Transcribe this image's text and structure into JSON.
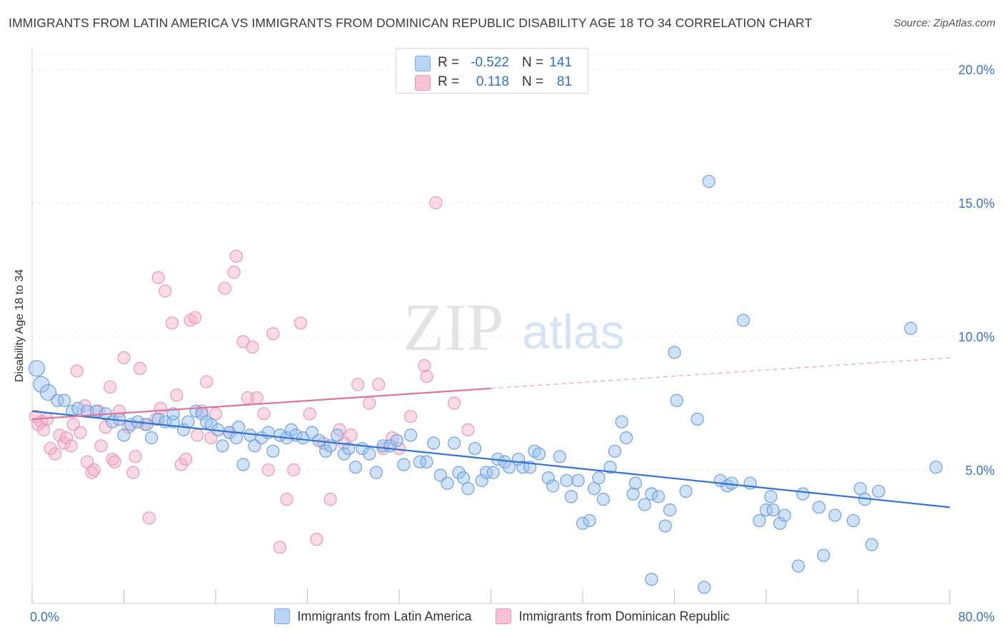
{
  "title": "IMMIGRANTS FROM LATIN AMERICA VS IMMIGRANTS FROM DOMINICAN REPUBLIC DISABILITY AGE 18 TO 34 CORRELATION CHART",
  "source": "Source: ZipAtlas.com",
  "watermark": {
    "zip": "ZIP",
    "atlas": "atlas"
  },
  "stats": [
    {
      "r_label": "R =",
      "r": "-0.522",
      "n_label": "N =",
      "n": "141",
      "color": "#7aa8e6"
    },
    {
      "r_label": "R =",
      "r": "0.118",
      "n_label": "N =",
      "n": "81",
      "color": "#ea94b0"
    }
  ],
  "chart_data": {
    "type": "scatter",
    "ylabel": "Disability Age 18 to 34",
    "x_tick_labels": [
      "0.0%",
      "80.0%"
    ],
    "y_tick_labels": [
      "5.0%",
      "10.0%",
      "15.0%",
      "20.0%"
    ],
    "y_ticks": [
      5,
      10,
      15,
      20
    ],
    "xlim": [
      0,
      80
    ],
    "ylim": [
      0,
      21
    ],
    "grid": true,
    "legend": "bottom",
    "series": [
      {
        "name": "Immigrants from Latin America",
        "color": "#5b93e0",
        "trend": {
          "x": [
            0,
            80
          ],
          "y": [
            7.2,
            3.6
          ],
          "dashed_from": null
        },
        "points": [
          [
            0.4,
            8.8
          ],
          [
            0.8,
            8.2
          ],
          [
            1.4,
            7.9
          ],
          [
            2.2,
            7.6
          ],
          [
            2.8,
            7.6
          ],
          [
            3.5,
            7.2
          ],
          [
            4.0,
            7.3
          ],
          [
            4.8,
            7.2
          ],
          [
            5.6,
            7.2
          ],
          [
            6.4,
            7.1
          ],
          [
            7.0,
            6.8
          ],
          [
            7.6,
            6.9
          ],
          [
            8.0,
            6.3
          ],
          [
            8.6,
            6.7
          ],
          [
            9.2,
            6.8
          ],
          [
            10.0,
            6.7
          ],
          [
            10.4,
            6.2
          ],
          [
            11.0,
            6.9
          ],
          [
            11.6,
            6.8
          ],
          [
            12.3,
            6.8
          ],
          [
            12.3,
            7.1
          ],
          [
            13.2,
            6.5
          ],
          [
            13.6,
            6.8
          ],
          [
            14.3,
            7.2
          ],
          [
            14.8,
            7.1
          ],
          [
            15.2,
            6.8
          ],
          [
            15.6,
            6.7
          ],
          [
            16.2,
            6.5
          ],
          [
            16.6,
            5.9
          ],
          [
            17.2,
            6.4
          ],
          [
            17.8,
            6.2
          ],
          [
            18.0,
            6.6
          ],
          [
            18.4,
            5.2
          ],
          [
            19.0,
            6.3
          ],
          [
            19.4,
            5.9
          ],
          [
            20.0,
            6.2
          ],
          [
            20.6,
            6.4
          ],
          [
            21.0,
            5.7
          ],
          [
            21.6,
            6.3
          ],
          [
            22.2,
            6.2
          ],
          [
            22.6,
            6.5
          ],
          [
            23.0,
            6.3
          ],
          [
            23.6,
            6.2
          ],
          [
            24.4,
            6.4
          ],
          [
            25.0,
            6.1
          ],
          [
            25.6,
            5.7
          ],
          [
            26.0,
            5.9
          ],
          [
            26.6,
            6.3
          ],
          [
            27.2,
            5.6
          ],
          [
            27.6,
            5.8
          ],
          [
            28.2,
            5.1
          ],
          [
            28.8,
            5.8
          ],
          [
            29.4,
            5.6
          ],
          [
            30.0,
            4.9
          ],
          [
            30.6,
            5.9
          ],
          [
            31.2,
            5.9
          ],
          [
            31.8,
            6.1
          ],
          [
            32.4,
            5.2
          ],
          [
            33.0,
            6.3
          ],
          [
            33.8,
            5.3
          ],
          [
            34.4,
            5.3
          ],
          [
            35.0,
            6.0
          ],
          [
            35.6,
            4.8
          ],
          [
            36.2,
            4.5
          ],
          [
            36.8,
            6.0
          ],
          [
            37.2,
            4.9
          ],
          [
            37.6,
            4.7
          ],
          [
            38.0,
            4.3
          ],
          [
            38.6,
            5.8
          ],
          [
            39.2,
            4.6
          ],
          [
            39.6,
            4.9
          ],
          [
            40.2,
            4.9
          ],
          [
            40.6,
            5.4
          ],
          [
            41.2,
            5.3
          ],
          [
            41.6,
            5.1
          ],
          [
            42.4,
            5.4
          ],
          [
            42.8,
            5.1
          ],
          [
            43.4,
            5.1
          ],
          [
            43.8,
            5.7
          ],
          [
            44.2,
            5.6
          ],
          [
            45.0,
            4.7
          ],
          [
            45.4,
            4.4
          ],
          [
            46.0,
            5.5
          ],
          [
            46.6,
            4.6
          ],
          [
            47.0,
            4.0
          ],
          [
            47.6,
            4.6
          ],
          [
            48.0,
            3.0
          ],
          [
            48.6,
            3.1
          ],
          [
            49.0,
            4.3
          ],
          [
            49.4,
            4.7
          ],
          [
            49.8,
            3.9
          ],
          [
            50.4,
            5.1
          ],
          [
            50.8,
            5.7
          ],
          [
            51.4,
            6.8
          ],
          [
            51.8,
            6.2
          ],
          [
            52.4,
            4.1
          ],
          [
            52.6,
            4.5
          ],
          [
            53.4,
            3.7
          ],
          [
            54.0,
            4.1
          ],
          [
            54.6,
            4.0
          ],
          [
            55.2,
            2.9
          ],
          [
            55.6,
            3.5
          ],
          [
            56.0,
            9.4
          ],
          [
            56.2,
            7.6
          ],
          [
            57.0,
            4.2
          ],
          [
            58.0,
            6.9
          ],
          [
            58.6,
            0.6
          ],
          [
            59.0,
            15.8
          ],
          [
            60.0,
            4.6
          ],
          [
            60.6,
            4.4
          ],
          [
            61.0,
            4.5
          ],
          [
            62.0,
            10.6
          ],
          [
            62.6,
            4.5
          ],
          [
            63.4,
            3.1
          ],
          [
            64.0,
            3.5
          ],
          [
            64.6,
            3.5
          ],
          [
            65.2,
            3.0
          ],
          [
            65.6,
            3.3
          ],
          [
            66.8,
            1.4
          ],
          [
            67.2,
            4.1
          ],
          [
            68.6,
            3.6
          ],
          [
            69.0,
            1.8
          ],
          [
            70.0,
            3.3
          ],
          [
            71.6,
            3.1
          ],
          [
            72.2,
            4.3
          ],
          [
            72.6,
            3.9
          ],
          [
            73.2,
            2.2
          ],
          [
            73.8,
            4.2
          ],
          [
            76.6,
            10.3
          ],
          [
            78.8,
            5.1
          ],
          [
            54.0,
            0.9
          ],
          [
            64.4,
            4.0
          ]
        ]
      },
      {
        "name": "Immigrants from Dominican Republic",
        "color": "#ea94b0",
        "trend": {
          "x": [
            0,
            80
          ],
          "y": [
            6.9,
            9.2
          ],
          "dashed_from": 40
        },
        "points": [
          [
            0.3,
            7.0
          ],
          [
            0.5,
            6.7
          ],
          [
            0.8,
            6.8
          ],
          [
            1.0,
            6.5
          ],
          [
            1.3,
            6.9
          ],
          [
            1.6,
            5.8
          ],
          [
            2.0,
            5.6
          ],
          [
            2.4,
            6.3
          ],
          [
            2.8,
            6.0
          ],
          [
            3.0,
            6.2
          ],
          [
            3.4,
            5.9
          ],
          [
            3.6,
            6.7
          ],
          [
            3.9,
            8.7
          ],
          [
            4.2,
            6.4
          ],
          [
            4.6,
            7.4
          ],
          [
            4.8,
            5.3
          ],
          [
            5.2,
            4.9
          ],
          [
            5.4,
            5.0
          ],
          [
            5.8,
            7.2
          ],
          [
            6.0,
            5.9
          ],
          [
            6.4,
            6.6
          ],
          [
            6.8,
            8.1
          ],
          [
            7.0,
            5.4
          ],
          [
            7.2,
            5.3
          ],
          [
            7.6,
            7.2
          ],
          [
            8.0,
            9.2
          ],
          [
            8.4,
            6.6
          ],
          [
            8.8,
            4.9
          ],
          [
            9.0,
            5.5
          ],
          [
            9.4,
            8.8
          ],
          [
            9.8,
            6.7
          ],
          [
            10.2,
            3.2
          ],
          [
            10.8,
            6.9
          ],
          [
            11.0,
            12.2
          ],
          [
            11.2,
            7.3
          ],
          [
            11.6,
            11.7
          ],
          [
            12.2,
            10.5
          ],
          [
            12.6,
            7.8
          ],
          [
            13.0,
            5.2
          ],
          [
            13.4,
            5.4
          ],
          [
            13.8,
            10.6
          ],
          [
            14.2,
            10.7
          ],
          [
            14.4,
            6.3
          ],
          [
            14.8,
            7.2
          ],
          [
            15.2,
            8.3
          ],
          [
            15.6,
            6.2
          ],
          [
            16.0,
            7.1
          ],
          [
            16.8,
            11.8
          ],
          [
            17.2,
            6.4
          ],
          [
            17.6,
            12.4
          ],
          [
            17.8,
            13.0
          ],
          [
            18.4,
            9.8
          ],
          [
            18.8,
            7.7
          ],
          [
            19.2,
            9.6
          ],
          [
            19.6,
            7.7
          ],
          [
            20.2,
            7.1
          ],
          [
            20.6,
            5.0
          ],
          [
            21.0,
            10.1
          ],
          [
            21.6,
            2.1
          ],
          [
            22.2,
            3.9
          ],
          [
            22.8,
            5.0
          ],
          [
            23.4,
            10.5
          ],
          [
            24.2,
            7.1
          ],
          [
            24.8,
            2.4
          ],
          [
            26.0,
            3.9
          ],
          [
            26.8,
            6.5
          ],
          [
            27.2,
            6.0
          ],
          [
            27.8,
            6.3
          ],
          [
            28.4,
            8.2
          ],
          [
            29.4,
            7.5
          ],
          [
            30.2,
            8.2
          ],
          [
            30.6,
            5.8
          ],
          [
            32.0,
            5.8
          ],
          [
            33.0,
            7.0
          ],
          [
            34.2,
            8.9
          ],
          [
            34.4,
            8.5
          ],
          [
            35.2,
            15.0
          ],
          [
            36.8,
            7.5
          ],
          [
            38.0,
            6.5
          ],
          [
            25.4,
            6.0
          ],
          [
            31.4,
            6.2
          ]
        ]
      }
    ]
  }
}
